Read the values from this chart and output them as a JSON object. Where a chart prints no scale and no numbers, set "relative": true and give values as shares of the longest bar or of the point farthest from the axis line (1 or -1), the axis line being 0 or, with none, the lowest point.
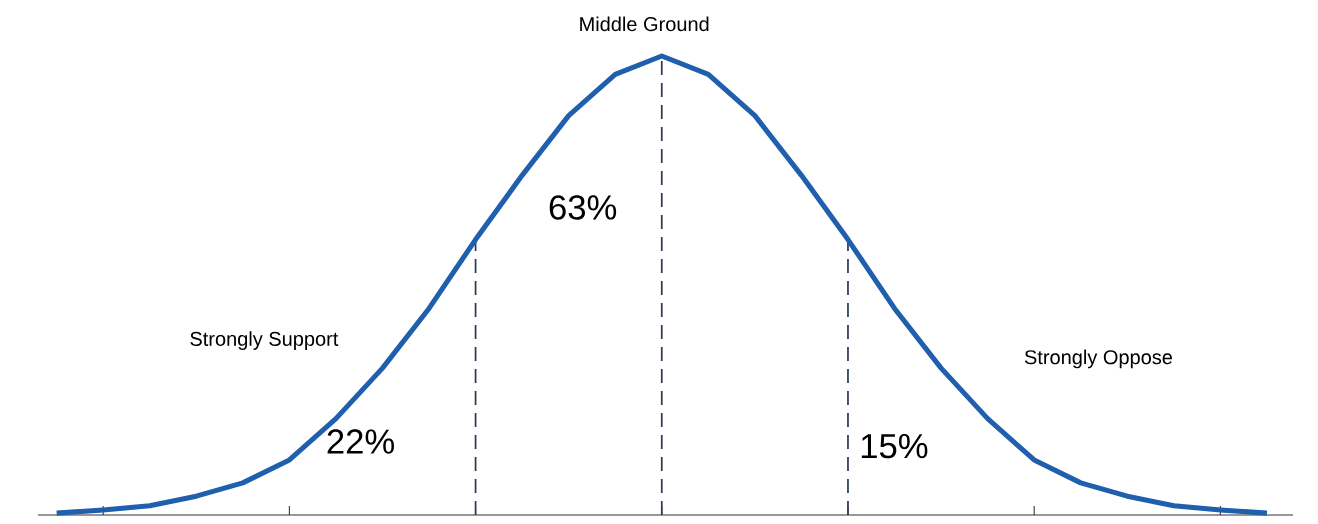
{
  "chart_data": {
    "type": "line",
    "relative": true,
    "categories": [
      null,
      null,
      null,
      null,
      null,
      null,
      null,
      null,
      null,
      null,
      null,
      null,
      null,
      null,
      null,
      null,
      null,
      null,
      null,
      null,
      null,
      null,
      null,
      null,
      null,
      null,
      null
    ],
    "series": [
      {
        "color": "#1f5fad",
        "values": [
          0.004,
          0.011,
          0.02,
          0.041,
          0.07,
          0.12,
          0.21,
          0.32,
          0.45,
          0.6,
          0.74,
          0.87,
          0.96,
          1,
          0.96,
          0.87,
          0.74,
          0.6,
          0.45,
          0.32,
          0.21,
          0.12,
          0.07,
          0.041,
          0.02,
          0.011,
          0.004
        ]
      }
    ],
    "annotations": [
      "Middle Ground",
      "63%",
      "Strongly Support",
      "22%",
      "Strongly Oppose",
      "15%"
    ],
    "line_style": "solid",
    "marker": "none"
  }
}
